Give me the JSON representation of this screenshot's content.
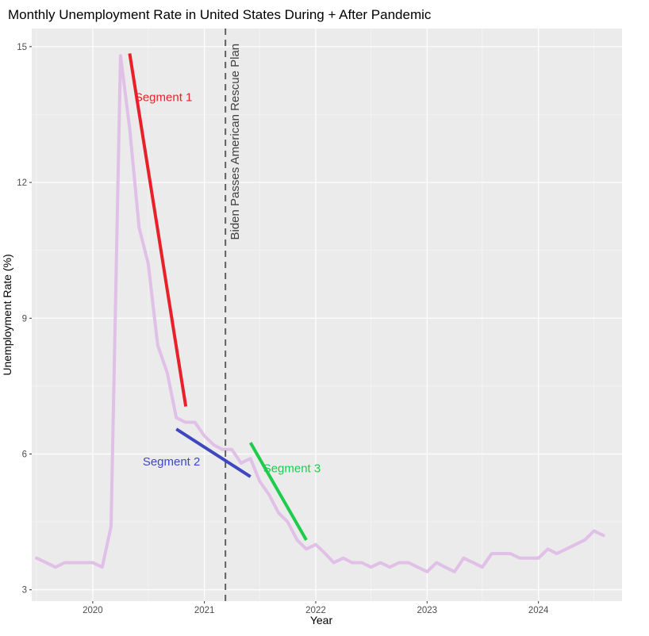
{
  "chart_data": {
    "type": "line",
    "title": "Monthly Unemployment Rate in United States During + After Pandemic",
    "xlabel": "Year",
    "ylabel": "Unemployment Rate (%)",
    "x_ticks": [
      "2020",
      "2021",
      "2022",
      "2023",
      "2024"
    ],
    "y_ticks": [
      3,
      6,
      9,
      12,
      15
    ],
    "xlim": [
      "2019-06-15",
      "2024-10-01"
    ],
    "ylim": [
      2.75,
      15.4
    ],
    "grid": true,
    "series": [
      {
        "color": "#e0c0e6",
        "points": [
          [
            "2019-07-01",
            3.7
          ],
          [
            "2019-08-01",
            3.6
          ],
          [
            "2019-09-01",
            3.5
          ],
          [
            "2019-10-01",
            3.6
          ],
          [
            "2019-11-01",
            3.6
          ],
          [
            "2019-12-01",
            3.6
          ],
          [
            "2020-01-01",
            3.6
          ],
          [
            "2020-02-01",
            3.5
          ],
          [
            "2020-03-01",
            4.4
          ],
          [
            "2020-04-01",
            14.8
          ],
          [
            "2020-05-01",
            13.2
          ],
          [
            "2020-06-01",
            11.0
          ],
          [
            "2020-07-01",
            10.2
          ],
          [
            "2020-08-01",
            8.4
          ],
          [
            "2020-09-01",
            7.8
          ],
          [
            "2020-10-01",
            6.8
          ],
          [
            "2020-11-01",
            6.7
          ],
          [
            "2020-12-01",
            6.7
          ],
          [
            "2021-01-01",
            6.4
          ],
          [
            "2021-02-01",
            6.2
          ],
          [
            "2021-03-01",
            6.1
          ],
          [
            "2021-04-01",
            6.1
          ],
          [
            "2021-05-01",
            5.8
          ],
          [
            "2021-06-01",
            5.9
          ],
          [
            "2021-07-01",
            5.4
          ],
          [
            "2021-08-01",
            5.1
          ],
          [
            "2021-09-01",
            4.7
          ],
          [
            "2021-10-01",
            4.5
          ],
          [
            "2021-11-01",
            4.1
          ],
          [
            "2021-12-01",
            3.9
          ],
          [
            "2022-01-01",
            4.0
          ],
          [
            "2022-02-01",
            3.8
          ],
          [
            "2022-03-01",
            3.6
          ],
          [
            "2022-04-01",
            3.7
          ],
          [
            "2022-05-01",
            3.6
          ],
          [
            "2022-06-01",
            3.6
          ],
          [
            "2022-07-01",
            3.5
          ],
          [
            "2022-08-01",
            3.6
          ],
          [
            "2022-09-01",
            3.5
          ],
          [
            "2022-10-01",
            3.6
          ],
          [
            "2022-11-01",
            3.6
          ],
          [
            "2022-12-01",
            3.5
          ],
          [
            "2023-01-01",
            3.4
          ],
          [
            "2023-02-01",
            3.6
          ],
          [
            "2023-03-01",
            3.5
          ],
          [
            "2023-04-01",
            3.4
          ],
          [
            "2023-05-01",
            3.7
          ],
          [
            "2023-06-01",
            3.6
          ],
          [
            "2023-07-01",
            3.5
          ],
          [
            "2023-08-01",
            3.8
          ],
          [
            "2023-09-01",
            3.8
          ],
          [
            "2023-10-01",
            3.8
          ],
          [
            "2023-11-01",
            3.7
          ],
          [
            "2023-12-01",
            3.7
          ],
          [
            "2024-01-01",
            3.7
          ],
          [
            "2024-02-01",
            3.9
          ],
          [
            "2024-03-01",
            3.8
          ],
          [
            "2024-04-01",
            3.9
          ],
          [
            "2024-05-01",
            4.0
          ],
          [
            "2024-06-01",
            4.1
          ],
          [
            "2024-07-01",
            4.3
          ],
          [
            "2024-08-01",
            4.2
          ]
        ]
      }
    ],
    "segments": [
      {
        "label": "Segment 1",
        "color": "#e8202a",
        "from": [
          "2020-05-01",
          14.85
        ],
        "to": [
          "2020-11-01",
          7.05
        ],
        "label_at": [
          "2020-08-20",
          13.8
        ]
      },
      {
        "label": "Segment 2",
        "color": "#3f47c0",
        "from": [
          "2020-10-01",
          6.55
        ],
        "to": [
          "2021-06-01",
          5.5
        ],
        "label_at": [
          "2020-09-15",
          5.75
        ]
      },
      {
        "label": "Segment 3",
        "color": "#1fcb4a",
        "from": [
          "2021-06-01",
          6.25
        ],
        "to": [
          "2021-12-01",
          4.1
        ],
        "label_at": [
          "2021-10-15",
          5.6
        ]
      }
    ],
    "vline": {
      "x": "2021-03-11",
      "label": "Biden Passes American Rescue Plan",
      "label_y": 12.9,
      "color": "#606060"
    }
  }
}
